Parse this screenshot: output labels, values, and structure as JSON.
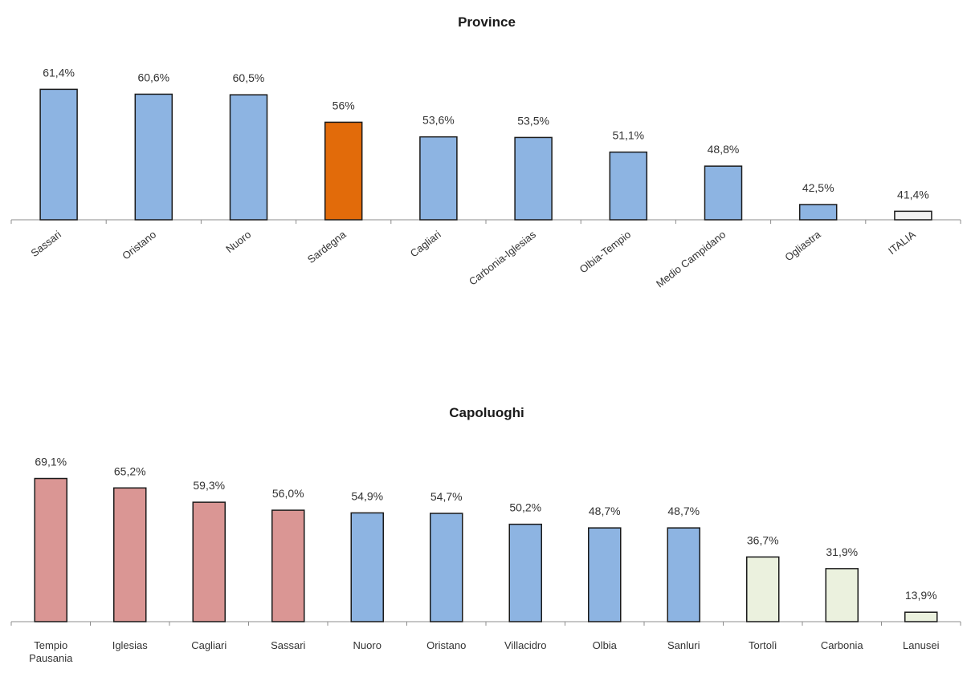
{
  "chart_data": [
    {
      "type": "bar",
      "title": "Province",
      "categories": [
        "Sassari",
        "Oristano",
        "Nuoro",
        "Sardegna",
        "Cagliari",
        "Carbonia-Iglesias",
        "Olbia-Tempio",
        "Medio Campidano",
        "Ogliastra",
        "ITALIA"
      ],
      "values": [
        61.4,
        60.6,
        60.5,
        56,
        53.6,
        53.5,
        51.1,
        48.8,
        42.5,
        41.4
      ],
      "value_labels": [
        "61,4%",
        "60,6%",
        "60,5%",
        "56%",
        "53,6%",
        "53,5%",
        "51,1%",
        "48,8%",
        "42,5%",
        "41,4%"
      ],
      "bar_colors": [
        "#8db4e2",
        "#8db4e2",
        "#8db4e2",
        "#e26b0a",
        "#8db4e2",
        "#8db4e2",
        "#8db4e2",
        "#8db4e2",
        "#8db4e2",
        "#f2f2f2"
      ],
      "ylim": [
        40,
        62
      ],
      "grid": false,
      "legend": "none"
    },
    {
      "type": "bar",
      "title": "Capoluoghi",
      "categories": [
        "Tempio Pausania",
        "Iglesias",
        "Cagliari",
        "Sassari",
        "Nuoro",
        "Oristano",
        "Villacidro",
        "Olbia",
        "Sanluri",
        "Tortolì",
        "Carbonia",
        "Lanusei"
      ],
      "values": [
        69.1,
        65.2,
        59.3,
        56.0,
        54.9,
        54.7,
        50.2,
        48.7,
        48.7,
        36.7,
        31.9,
        13.9
      ],
      "value_labels": [
        "69,1%",
        "65,2%",
        "59,3%",
        "56,0%",
        "54,9%",
        "54,7%",
        "50,2%",
        "48,7%",
        "48,7%",
        "36,7%",
        "31,9%",
        "13,9%"
      ],
      "bar_colors": [
        "#da9694",
        "#da9694",
        "#da9694",
        "#da9694",
        "#8db4e2",
        "#8db4e2",
        "#8db4e2",
        "#8db4e2",
        "#8db4e2",
        "#ebf1de",
        "#ebf1de",
        "#ebf1de"
      ],
      "ylim": [
        10,
        70
      ],
      "grid": false,
      "legend": "none"
    }
  ]
}
